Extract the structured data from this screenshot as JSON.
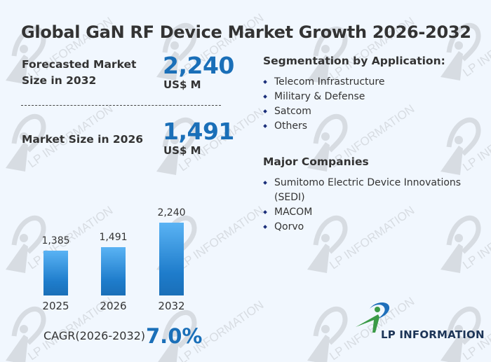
{
  "title": "Global GaN RF Device Market Growth 2026-2032",
  "kpis": {
    "forecast": {
      "label_line1": "Forecasted Market",
      "label_line2": "Size in 2032",
      "value": "2,240",
      "unit": "US$ M"
    },
    "current": {
      "label": "Market Size in 2026",
      "value": "1,491",
      "unit": "US$ M"
    }
  },
  "cagr": {
    "label": "CAGR(2026-2032)",
    "value": "7.0%"
  },
  "segmentation": {
    "title": "Segmentation by Application:",
    "items": [
      "Telecom Infrastructure",
      "Military & Defense",
      "Satcom",
      "Others"
    ]
  },
  "companies": {
    "title": "Major Companies",
    "items": [
      "Sumitomo Electric Device Innovations (SEDI)",
      "MACOM",
      "Qorvo"
    ]
  },
  "logo": {
    "name": "LP INFORMATION",
    "icon": "lp-information-logo-icon"
  },
  "watermark": {
    "text": "LP INFORMATION",
    "icon": "lp-watermark-icon"
  },
  "colors": {
    "accent": "#1a6fb8",
    "bar_top": "#5ab3f4",
    "bar_bottom": "#1a6fb8",
    "background": "#f1f7fe",
    "bullet": "#1b2f7a",
    "logo_green": "#3a9a46",
    "logo_blue": "#1f6fba"
  },
  "chart_data": {
    "type": "bar",
    "title": "",
    "categories": [
      "2025",
      "2026",
      "2032"
    ],
    "values": [
      1385,
      1491,
      2240
    ],
    "value_labels": [
      "1,385",
      "1,491",
      "2,240"
    ],
    "xlabel": "",
    "ylabel": "",
    "ylim": [
      0,
      2240
    ],
    "grid": false,
    "legend": "none"
  }
}
